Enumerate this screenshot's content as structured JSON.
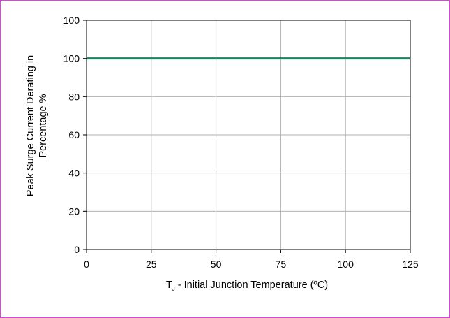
{
  "chart_data": {
    "type": "line",
    "x_ticks": [
      0,
      25,
      50,
      75,
      100,
      125
    ],
    "y_ticks": [
      0,
      20,
      40,
      60,
      80,
      100
    ],
    "y_top_label": "100",
    "xlim": [
      0,
      125
    ],
    "ylim": [
      0,
      120
    ],
    "grid": true,
    "xlabel_sub": "J",
    "xlabel_main": " - Initial Junction Temperature (ºC)",
    "xlabel_prefix": "T",
    "ylabel_line1": "Peak Surge Current Derating in",
    "ylabel_line2": "Percentage %",
    "series": [
      {
        "x": [
          0,
          125
        ],
        "y": [
          100,
          100
        ],
        "color": "#1e8060"
      }
    ],
    "colors": {
      "frame": "#e040e0",
      "grid": "#b0b0b0",
      "axis": "#000000"
    }
  }
}
